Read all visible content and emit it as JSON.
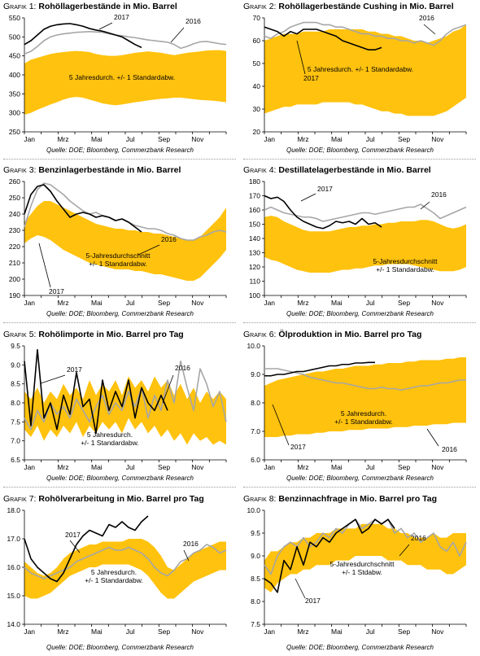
{
  "source_note": "Quelle: DOE; Bloomberg, Commerzbank Research",
  "colors": {
    "band": "#FFC20E",
    "y2017": "#000000",
    "y2016": "#A6A6A6"
  },
  "chart_data": [
    {
      "type": "area",
      "title_prefix": "Grafik 1:",
      "title": "Rohöllagerbestände in Mio. Barrel",
      "x_ticks": [
        "Jan",
        "Mrz",
        "Mai",
        "Jul",
        "Sep",
        "Nov"
      ],
      "ylim": [
        250,
        550
      ],
      "y_ticks": [
        250,
        300,
        350,
        400,
        450,
        500,
        550
      ],
      "band_label": [
        "5 Jahresdurch. +/-  1 Standardabw."
      ],
      "label_2017": "2017",
      "label_2016": "2016",
      "band_upper": [
        430,
        440,
        445,
        450,
        455,
        458,
        460,
        462,
        463,
        462,
        460,
        455,
        452,
        450,
        450,
        452,
        455,
        458,
        460,
        462,
        460,
        458,
        455,
        452,
        455,
        458,
        460,
        462,
        464,
        465,
        465,
        463
      ],
      "band_lower": [
        295,
        300,
        308,
        315,
        322,
        328,
        335,
        340,
        342,
        340,
        335,
        330,
        325,
        322,
        320,
        322,
        325,
        328,
        330,
        333,
        335,
        337,
        338,
        340,
        340,
        338,
        336,
        334,
        333,
        332,
        330,
        328
      ],
      "series_2017": [
        480,
        490,
        505,
        520,
        528,
        532,
        534,
        535,
        532,
        528,
        522,
        518,
        515,
        510,
        505,
        500,
        490,
        480,
        472
      ],
      "series_2016": [
        455,
        462,
        475,
        490,
        500,
        505,
        508,
        510,
        512,
        513,
        514,
        513,
        512,
        508,
        505,
        503,
        500,
        498,
        495,
        492,
        490,
        488,
        486,
        480,
        470,
        475,
        482,
        487,
        488,
        485,
        482,
        480
      ]
    },
    {
      "type": "area",
      "title_prefix": "Grafik 2:",
      "title": "Rohöllagerbestände Cushing in Mio. Barrel",
      "x_ticks": [
        "Jan",
        "Mrz",
        "Mai",
        "Jul",
        "Sep",
        "Nov"
      ],
      "ylim": [
        20,
        70
      ],
      "y_ticks": [
        20,
        30,
        40,
        50,
        60,
        70
      ],
      "band_label": [
        "5 Jahresdurch. +/-  1 Standardabw."
      ],
      "label_2017": "2017",
      "label_2016": "2016",
      "band_upper": [
        60,
        61,
        62,
        63,
        63,
        63,
        64,
        64,
        64,
        64,
        65,
        65,
        65,
        65,
        65,
        65,
        64,
        64,
        63,
        63,
        62,
        62,
        61,
        60,
        60,
        59,
        60,
        61,
        62,
        64,
        65,
        67
      ],
      "band_lower": [
        28,
        29,
        30,
        31,
        31,
        32,
        32,
        32,
        32,
        33,
        33,
        33,
        33,
        33,
        32,
        32,
        31,
        30,
        29,
        29,
        28,
        28,
        27,
        27,
        27,
        27,
        27,
        28,
        29,
        31,
        33,
        35
      ],
      "series_2017": [
        66,
        65,
        64,
        62,
        64,
        63,
        65,
        65,
        65,
        64,
        63,
        62,
        60,
        59,
        58,
        57,
        56,
        56,
        57
      ],
      "series_2016": [
        62,
        61,
        63,
        64,
        66,
        67,
        68,
        68,
        68,
        67,
        67,
        66,
        66,
        65,
        64,
        63,
        63,
        62,
        62,
        61,
        61,
        60,
        60,
        59,
        60,
        59,
        58,
        60,
        63,
        65,
        66,
        67
      ]
    },
    {
      "type": "area",
      "title_prefix": "Grafik 3:",
      "title": "Benzinlagerbestände in Mio. Barrel",
      "x_ticks": [
        "Jan",
        "Mrz",
        "Mai",
        "Jul",
        "Sep",
        "Nov"
      ],
      "ylim": [
        190,
        260
      ],
      "y_ticks": [
        190,
        200,
        210,
        220,
        230,
        240,
        250,
        260
      ],
      "band_label": [
        "5-Jahresdurchschnitt",
        "+/- 1 Standardabw."
      ],
      "label_2017": "2017",
      "label_2016": "2016",
      "band_upper": [
        235,
        240,
        245,
        248,
        248,
        246,
        244,
        242,
        240,
        238,
        236,
        234,
        233,
        232,
        231,
        231,
        230,
        230,
        229,
        229,
        228,
        228,
        227,
        226,
        225,
        224,
        224,
        226,
        230,
        234,
        238,
        244
      ],
      "band_lower": [
        222,
        225,
        227,
        226,
        224,
        221,
        218,
        216,
        214,
        212,
        210,
        209,
        208,
        207,
        206,
        206,
        206,
        205,
        205,
        204,
        203,
        203,
        202,
        201,
        200,
        199,
        199,
        201,
        205,
        209,
        213,
        218
      ],
      "series_2017": [
        240,
        252,
        257,
        258,
        254,
        248,
        243,
        238,
        240,
        241,
        240,
        238,
        239,
        238,
        236,
        237,
        235,
        232,
        229
      ],
      "series_2016": [
        232,
        245,
        255,
        259,
        258,
        255,
        252,
        248,
        245,
        242,
        240,
        241,
        239,
        238,
        236,
        237,
        235,
        233,
        232,
        231,
        231,
        230,
        228,
        227,
        225,
        224,
        224,
        226,
        227,
        229,
        230,
        229
      ]
    },
    {
      "type": "area",
      "title_prefix": "Grafik 4:",
      "title": "Destillatelagerbestände in Mio. Barrel",
      "x_ticks": [
        "Jan",
        "Mrz",
        "Mai",
        "Jul",
        "Sep",
        "Nov"
      ],
      "ylim": [
        100,
        180
      ],
      "y_ticks": [
        100,
        110,
        120,
        130,
        140,
        150,
        160,
        170,
        180
      ],
      "band_label": [
        "5-Jahresdurchschnitt",
        "+/- 1 Standardabw."
      ],
      "label_2017": "2017",
      "label_2016": "2016",
      "band_upper": [
        155,
        156,
        155,
        152,
        150,
        148,
        146,
        145,
        145,
        145,
        145,
        146,
        147,
        148,
        148,
        149,
        149,
        150,
        150,
        151,
        151,
        152,
        152,
        152,
        153,
        153,
        152,
        150,
        148,
        147,
        148,
        150
      ],
      "band_lower": [
        127,
        125,
        124,
        122,
        120,
        118,
        117,
        116,
        116,
        116,
        116,
        117,
        118,
        118,
        119,
        119,
        120,
        121,
        121,
        122,
        122,
        122,
        122,
        121,
        120,
        119,
        118,
        117,
        117,
        117,
        118,
        120
      ],
      "series_2017": [
        170,
        168,
        169,
        166,
        160,
        155,
        152,
        150,
        148,
        147,
        149,
        152,
        151,
        152,
        150,
        154,
        150,
        151,
        148
      ],
      "series_2016": [
        160,
        162,
        160,
        158,
        157,
        156,
        155,
        155,
        154,
        152,
        153,
        154,
        155,
        156,
        157,
        158,
        158,
        157,
        158,
        159,
        160,
        161,
        162,
        162,
        164,
        161,
        158,
        154,
        156,
        158,
        160,
        162
      ]
    },
    {
      "type": "area",
      "title_prefix": "Grafik 5:",
      "title": "Rohölimporte in Mio. Barrel pro Tag",
      "x_ticks": [
        "Jan",
        "Mrz",
        "Mai",
        "Jul",
        "Sep",
        "Nov"
      ],
      "ylim": [
        6.5,
        9.5
      ],
      "y_ticks": [
        6.5,
        7.0,
        7.5,
        8.0,
        8.5,
        9.0,
        9.5
      ],
      "band_label": [
        "5 Jahresdurch.",
        "+/-  1 Standardabw."
      ],
      "label_2017": "2017",
      "label_2016": "2016",
      "band_upper": [
        8.3,
        8.1,
        8.4,
        8.0,
        8.3,
        8.1,
        8.5,
        8.2,
        8.4,
        8.1,
        8.6,
        8.2,
        8.5,
        8.3,
        8.6,
        8.2,
        8.7,
        8.4,
        8.6,
        8.3,
        8.7,
        8.4,
        8.6,
        8.2,
        8.5,
        8.1,
        8.4,
        8.0,
        8.3,
        8.1,
        8.3,
        8.1
      ],
      "band_lower": [
        7.3,
        7.1,
        7.4,
        7.0,
        7.3,
        7.1,
        7.4,
        7.2,
        7.5,
        7.1,
        7.4,
        7.2,
        7.5,
        7.3,
        7.5,
        7.2,
        7.6,
        7.3,
        7.5,
        7.2,
        7.4,
        7.1,
        7.3,
        7.0,
        7.2,
        6.9,
        7.2,
        7.0,
        7.1,
        6.9,
        7.0,
        6.9
      ],
      "series_2017": [
        9.1,
        7.4,
        9.4,
        7.6,
        8.0,
        7.3,
        8.2,
        7.7,
        8.8,
        7.9,
        8.1,
        7.2,
        8.6,
        7.8,
        8.3,
        7.9,
        8.6,
        7.6,
        8.4,
        8.0,
        7.8,
        8.2,
        7.8
      ],
      "series_2016": [
        7.6,
        7.3,
        7.8,
        7.5,
        8.0,
        7.7,
        7.9,
        7.6,
        8.1,
        7.8,
        7.5,
        7.9,
        8.2,
        7.7,
        8.0,
        7.8,
        8.3,
        7.9,
        8.4,
        7.6,
        8.2,
        7.8,
        8.6,
        8.0,
        9.1,
        8.4,
        7.8,
        8.9,
        8.5,
        7.9,
        8.3,
        7.5
      ]
    },
    {
      "type": "area",
      "title_prefix": "Grafik 6:",
      "title": "Ölproduktion in Mio. Barrel pro Tag",
      "x_ticks": [
        "Jan",
        "Mrz",
        "Mai",
        "Jul",
        "Sep",
        "Nov"
      ],
      "ylim": [
        6.0,
        10.0
      ],
      "y_ticks": [
        6.0,
        7.0,
        8.0,
        9.0,
        10.0
      ],
      "band_label": [
        "5 Jahresdurch.",
        "+/-  1 Standardabw."
      ],
      "label_2017": "2017",
      "label_2016": "2016",
      "band_upper": [
        8.6,
        8.7,
        8.8,
        8.85,
        8.9,
        8.95,
        9.0,
        9.05,
        9.1,
        9.1,
        9.15,
        9.2,
        9.2,
        9.25,
        9.3,
        9.3,
        9.3,
        9.35,
        9.35,
        9.4,
        9.4,
        9.4,
        9.45,
        9.45,
        9.5,
        9.5,
        9.5,
        9.5,
        9.55,
        9.55,
        9.6,
        9.6
      ],
      "band_lower": [
        6.8,
        6.8,
        6.8,
        6.85,
        6.85,
        6.9,
        6.9,
        6.9,
        6.95,
        6.95,
        7.0,
        7.0,
        7.0,
        7.05,
        7.05,
        7.05,
        7.1,
        7.1,
        7.1,
        7.1,
        7.15,
        7.15,
        7.15,
        7.2,
        7.2,
        7.2,
        7.25,
        7.25,
        7.25,
        7.3,
        7.3,
        7.3
      ],
      "series_2017": [
        8.95,
        8.95,
        9.0,
        9.0,
        9.05,
        9.1,
        9.1,
        9.15,
        9.2,
        9.25,
        9.3,
        9.3,
        9.35,
        9.35,
        9.4,
        9.4,
        9.42,
        9.42
      ],
      "series_2016": [
        9.2,
        9.2,
        9.2,
        9.15,
        9.1,
        9.05,
        9.0,
        8.9,
        8.85,
        8.8,
        8.75,
        8.7,
        8.7,
        8.65,
        8.6,
        8.55,
        8.5,
        8.5,
        8.55,
        8.5,
        8.5,
        8.45,
        8.5,
        8.55,
        8.6,
        8.6,
        8.65,
        8.7,
        8.7,
        8.75,
        8.8,
        8.8
      ]
    },
    {
      "type": "area",
      "title_prefix": "Grafik 7:",
      "title": "Rohölverarbeitung in Mio. Barrel pro Tag",
      "x_ticks": [
        "Jan",
        "Mrz",
        "Mai",
        "Jul",
        "Sep",
        "Nov"
      ],
      "ylim": [
        14.0,
        18.0
      ],
      "y_ticks": [
        14.0,
        15.0,
        16.0,
        17.0,
        18.0
      ],
      "band_label": [
        "5 Jahresdurch.",
        "+/-  1 Standardabw."
      ],
      "label_2017": "2017",
      "label_2016": "2016",
      "band_upper": [
        16.2,
        16.0,
        15.8,
        15.7,
        15.8,
        16.0,
        16.3,
        16.5,
        16.6,
        16.7,
        16.8,
        16.8,
        16.9,
        16.9,
        16.9,
        16.9,
        17.0,
        17.0,
        17.0,
        16.9,
        16.7,
        16.4,
        16.0,
        15.9,
        16.1,
        16.3,
        16.5,
        16.6,
        16.7,
        16.8,
        16.9,
        16.9
      ],
      "band_lower": [
        15.0,
        14.9,
        14.9,
        15.0,
        15.1,
        15.3,
        15.5,
        15.7,
        15.8,
        15.9,
        16.0,
        16.0,
        16.1,
        16.1,
        16.1,
        16.1,
        16.1,
        16.0,
        15.9,
        15.7,
        15.4,
        15.1,
        14.9,
        14.9,
        15.1,
        15.3,
        15.5,
        15.6,
        15.7,
        15.8,
        15.9,
        15.9
      ],
      "series_2017": [
        17.0,
        16.3,
        16.0,
        15.8,
        15.6,
        15.5,
        15.8,
        16.3,
        16.8,
        17.1,
        17.3,
        17.2,
        17.1,
        17.5,
        17.4,
        17.6,
        17.4,
        17.3,
        17.6,
        17.8
      ],
      "series_2016": [
        16.0,
        15.8,
        15.7,
        15.6,
        15.7,
        15.8,
        15.9,
        16.0,
        16.2,
        16.3,
        16.4,
        16.5,
        16.6,
        16.7,
        16.6,
        16.6,
        16.7,
        16.6,
        16.5,
        16.3,
        16.0,
        15.8,
        15.7,
        15.9,
        16.2,
        16.3,
        16.5,
        16.6,
        16.8,
        16.7,
        16.5,
        16.6
      ]
    },
    {
      "type": "area",
      "title_prefix": "Grafik 8:",
      "title": "Benzinnachfrage in Mio. Barrel pro Tag",
      "x_ticks": [
        "Jan",
        "Mrz",
        "Mai",
        "Jul",
        "Sep",
        "Nov"
      ],
      "ylim": [
        7.5,
        10.0
      ],
      "y_ticks": [
        7.5,
        8.0,
        8.5,
        9.0,
        9.5,
        10.0
      ],
      "band_label": [
        "5-Jahresdurchschnitt",
        "+/- 1 Stdabw."
      ],
      "label_2017": "2017",
      "label_2016": "2016",
      "band_upper": [
        8.9,
        9.1,
        9.1,
        9.2,
        9.3,
        9.3,
        9.4,
        9.4,
        9.5,
        9.5,
        9.5,
        9.6,
        9.6,
        9.6,
        9.6,
        9.7,
        9.7,
        9.7,
        9.7,
        9.6,
        9.6,
        9.5,
        9.5,
        9.4,
        9.4,
        9.4,
        9.5,
        9.4,
        9.4,
        9.5,
        9.5,
        9.5
      ],
      "band_lower": [
        8.3,
        8.2,
        8.4,
        8.5,
        8.6,
        8.6,
        8.7,
        8.7,
        8.8,
        8.8,
        8.8,
        8.9,
        8.9,
        8.9,
        9.0,
        9.0,
        9.0,
        9.0,
        9.0,
        8.9,
        8.9,
        8.9,
        8.8,
        8.8,
        8.8,
        8.7,
        8.7,
        8.7,
        8.6,
        8.6,
        8.7,
        8.8
      ],
      "series_2017": [
        8.5,
        8.4,
        8.2,
        8.9,
        8.7,
        9.2,
        8.8,
        9.3,
        9.2,
        9.4,
        9.3,
        9.5,
        9.6,
        9.7,
        9.8,
        9.5,
        9.6,
        9.8,
        9.7,
        9.8,
        9.6
      ],
      "series_2016": [
        8.8,
        8.6,
        9.0,
        9.2,
        9.3,
        9.2,
        9.4,
        9.2,
        9.3,
        9.5,
        9.4,
        9.6,
        9.5,
        9.7,
        9.8,
        9.6,
        9.7,
        9.8,
        9.7,
        9.8,
        9.5,
        9.6,
        9.4,
        9.5,
        9.3,
        9.4,
        9.5,
        9.2,
        9.1,
        9.3,
        9.0,
        9.3
      ]
    }
  ]
}
